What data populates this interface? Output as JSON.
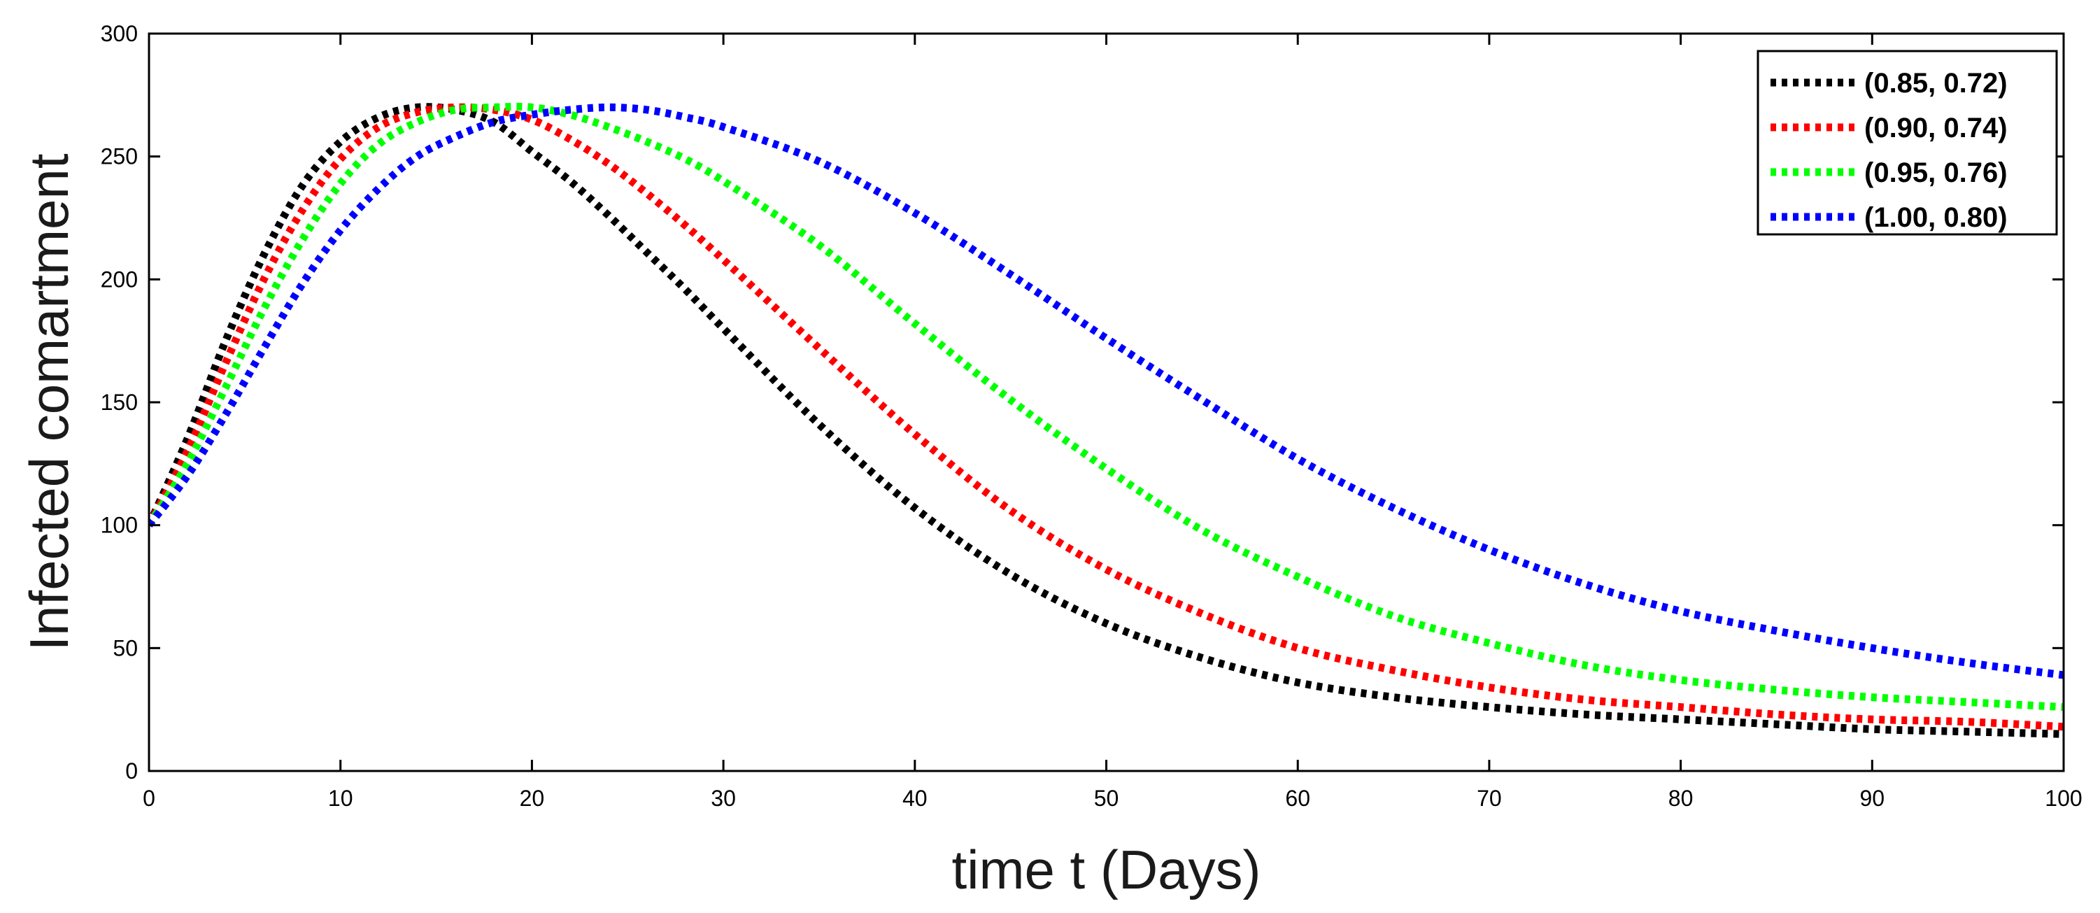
{
  "chart_data": {
    "type": "line",
    "title": "",
    "xlabel": "time t (Days)",
    "ylabel": "Infected  comartment",
    "xlim": [
      0,
      100
    ],
    "ylim": [
      0,
      300
    ],
    "xticks": [
      0,
      10,
      20,
      30,
      40,
      50,
      60,
      70,
      80,
      90,
      100
    ],
    "yticks": [
      0,
      50,
      100,
      150,
      200,
      250,
      300
    ],
    "grid": false,
    "legend_position": "top-right",
    "line_style": "dotted",
    "x": [
      0,
      2,
      4,
      6,
      8,
      10,
      12,
      14,
      16,
      18,
      20,
      22,
      24,
      26,
      28,
      30,
      35,
      40,
      45,
      50,
      55,
      60,
      65,
      70,
      75,
      80,
      85,
      90,
      95,
      100
    ],
    "series": [
      {
        "name": "(0.85, 0.72)",
        "color": "#000000",
        "values": [
          100,
          135,
          175,
          210,
          238,
          256,
          266,
          270,
          269,
          264,
          252,
          240,
          226,
          211,
          196,
          180,
          141,
          107,
          80,
          60,
          46,
          36,
          30,
          26,
          23,
          21,
          19,
          17,
          16,
          15
        ]
      },
      {
        "name": "(0.90, 0.74)",
        "color": "#ff0000",
        "values": [
          100,
          130,
          166,
          200,
          228,
          249,
          262,
          268,
          270,
          269,
          265,
          257,
          247,
          235,
          222,
          208,
          172,
          137,
          106,
          82,
          64,
          50,
          41,
          34,
          29,
          26,
          23,
          21,
          20,
          18
        ]
      },
      {
        "name": "(0.95, 0.76)",
        "color": "#00ff00",
        "values": [
          100,
          125,
          156,
          188,
          216,
          239,
          255,
          264,
          269,
          270,
          270,
          267,
          262,
          256,
          249,
          240,
          214,
          182,
          151,
          123,
          98,
          79,
          63,
          52,
          43,
          37,
          33,
          30,
          28,
          26
        ]
      },
      {
        "name": "(1.00, 0.80)",
        "color": "#0000ff",
        "values": [
          100,
          120,
          145,
          172,
          198,
          220,
          237,
          250,
          258,
          264,
          267,
          269,
          270,
          269,
          266,
          262,
          248,
          227,
          202,
          176,
          151,
          127,
          107,
          90,
          76,
          65,
          57,
          50,
          44,
          39
        ]
      }
    ]
  }
}
